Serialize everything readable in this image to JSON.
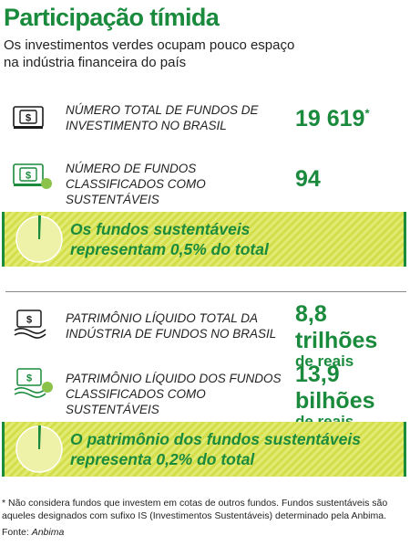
{
  "title": "Participação tímida",
  "subtitle": "Os investimentos verdes ocupam pouco espaço na indústria financeira do país",
  "chart_data": {
    "type": "table",
    "rows": [
      {
        "label": "NÚMERO TOTAL DE FUNDOS DE INVESTIMENTO NO BRASIL",
        "value": "19 619",
        "value_num": 19619,
        "marker": "*"
      },
      {
        "label": "NÚMERO DE FUNDOS CLASSIFICADOS COMO SUSTENTÁVEIS",
        "value": "94",
        "value_num": 94
      }
    ],
    "highlight_1": {
      "text_1": "Os fundos sustentáveis",
      "text_2": "representam 0,5% do total",
      "share_percent": 0.5
    },
    "rows_2": [
      {
        "label": "PATRIMÔNIO LÍQUIDO TOTAL DA INDÚSTRIA DE FUNDOS NO BRASIL",
        "value": "8,8 trilhões",
        "unit": "de reais"
      },
      {
        "label": "PATRIMÔNIO LÍQUIDO DOS FUNDOS CLASSIFICADOS COMO SUSTENTÁVEIS",
        "value": "13,9 bilhões",
        "unit": "de reais"
      }
    ],
    "highlight_2": {
      "text_1": "O patrimônio dos fundos sustentáveis",
      "text_2": "representa 0,2% do total",
      "share_percent": 0.2
    }
  },
  "footnote": "* Não considera fundos que investem em cotas de outros fundos. Fundos sustentáveis são aqueles designados com sufixo IS (Investimentos Sustentáveis) determinado pela Anbima.",
  "source_label": "Fonte:",
  "source_name": "Anbima",
  "colors": {
    "green": "#1a8a3c",
    "highlight_yellow": "#dde665",
    "separator": "#8a8a8a"
  },
  "icons": [
    "banknote-icon",
    "banknote-eco-icon",
    "money-hand-icon",
    "money-hand-eco-icon",
    "pie-chart-icon"
  ]
}
